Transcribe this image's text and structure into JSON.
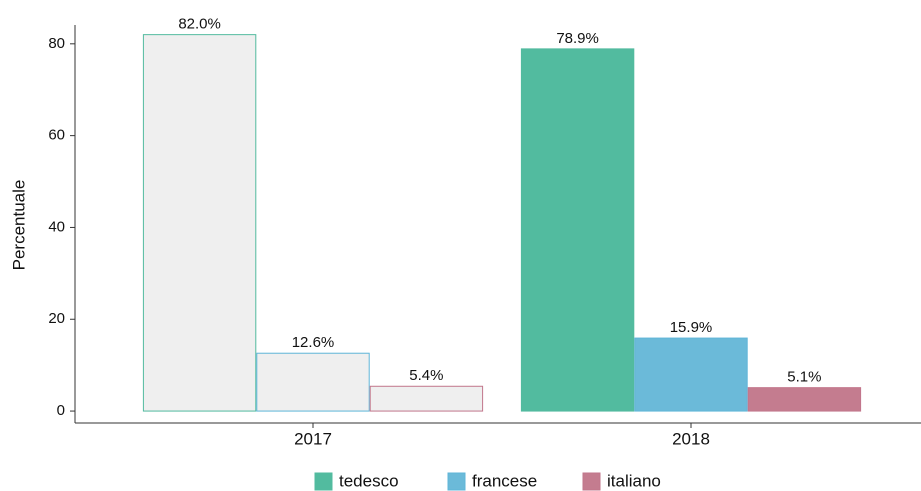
{
  "chart_data": {
    "type": "bar",
    "y_label": "Percentuale",
    "categories": [
      "2017",
      "2018"
    ],
    "series": [
      {
        "name": "tedesco",
        "color": "#52bb9f",
        "fills": [
          "#efefef",
          "#52bb9f"
        ],
        "values": [
          82.0,
          78.9
        ],
        "value_labels": [
          "82.0%",
          "78.9%"
        ]
      },
      {
        "name": "francese",
        "color": "#5fb5d8",
        "fills": [
          "#efefef",
          "#6bbad9"
        ],
        "values": [
          12.6,
          15.9
        ],
        "value_labels": [
          "12.6%",
          "15.9%"
        ]
      },
      {
        "name": "italiano",
        "color": "#c2768b",
        "fills": [
          "#efefef",
          "#c47c8f"
        ],
        "values": [
          5.4,
          5.1
        ],
        "value_labels": [
          "5.4%",
          "5.1%"
        ]
      }
    ],
    "ylim": [
      -2.6,
      84.1
    ],
    "yticks": [
      0,
      20,
      40,
      60,
      80
    ],
    "grid": false,
    "legend": "bottom"
  }
}
